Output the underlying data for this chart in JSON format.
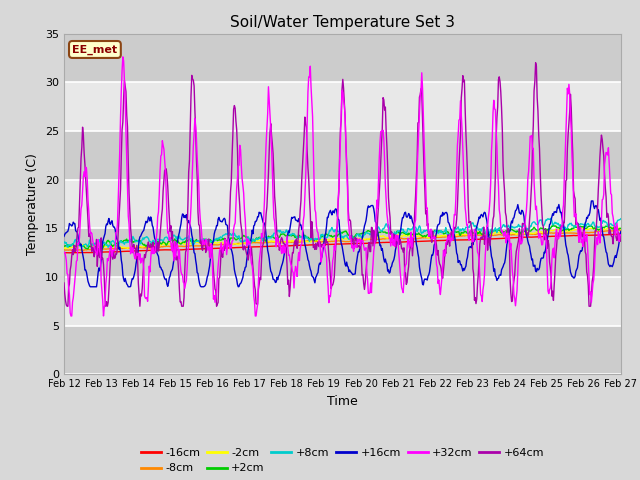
{
  "title": "Soil/Water Temperature Set 3",
  "xlabel": "Time",
  "ylabel": "Temperature (C)",
  "ylim": [
    0,
    35
  ],
  "yticks": [
    0,
    5,
    10,
    15,
    20,
    25,
    30,
    35
  ],
  "background_color": "#d8d8d8",
  "plot_bg_color": "#d8d8d8",
  "grid_color": "#ffffff",
  "annotation_text": "EE_met",
  "annotation_bg": "#ffffcc",
  "annotation_border": "#8B4513",
  "annotation_text_color": "#8B0000",
  "series_colors": {
    "-16cm": "#ff0000",
    "-8cm": "#ff8800",
    "-2cm": "#ffff00",
    "+2cm": "#00cc00",
    "+8cm": "#00cccc",
    "+16cm": "#0000cc",
    "+32cm": "#ff00ff",
    "+64cm": "#aa00aa"
  },
  "x_tick_labels": [
    "Feb 12",
    "Feb 13",
    "Feb 14",
    "Feb 15",
    "Feb 16",
    "Feb 17",
    "Feb 18",
    "Feb 19",
    "Feb 20",
    "Feb 21",
    "Feb 22",
    "Feb 23",
    "Feb 24",
    "Feb 25",
    "Feb 26",
    "Feb 27"
  ],
  "n_days": 15,
  "points_per_day": 48
}
